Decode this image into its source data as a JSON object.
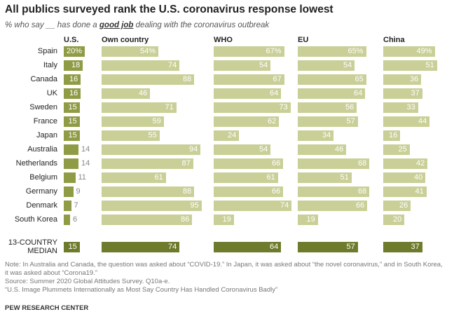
{
  "chart_data": {
    "type": "bar",
    "title": "All publics surveyed rank the U.S. coronavirus response lowest",
    "subtitle": [
      "% who say __ has done a ",
      "good job",
      " dealing with the coronavirus outbreak"
    ],
    "categories": [
      "Spain",
      "Italy",
      "Canada",
      "UK",
      "Sweden",
      "France",
      "Japan",
      "Australia",
      "Netherlands",
      "Belgium",
      "Germany",
      "Denmark",
      "South Korea",
      "13-COUNTRY MEDIAN"
    ],
    "series": [
      {
        "name": "U.S.",
        "color": "#8f9c45",
        "values": [
          20,
          18,
          16,
          16,
          15,
          15,
          15,
          14,
          14,
          11,
          9,
          7,
          6,
          15
        ],
        "value_labels": [
          "20%",
          "18",
          "16",
          "16",
          "15",
          "15",
          "15",
          "14",
          "14",
          "11",
          "9",
          "7",
          "6",
          "15"
        ]
      },
      {
        "name": "Own country",
        "color": "#c9cf96",
        "values": [
          54,
          74,
          88,
          46,
          71,
          59,
          55,
          94,
          87,
          61,
          88,
          95,
          86,
          74
        ],
        "value_labels": [
          "54%",
          "74",
          "88",
          "46",
          "71",
          "59",
          "55",
          "94",
          "87",
          "61",
          "88",
          "95",
          "86",
          "74"
        ]
      },
      {
        "name": "WHO",
        "color": "#c9cf96",
        "values": [
          67,
          54,
          67,
          64,
          73,
          62,
          24,
          54,
          66,
          61,
          66,
          74,
          19,
          64
        ],
        "value_labels": [
          "67%",
          "54",
          "67",
          "64",
          "73",
          "62",
          "24",
          "54",
          "66",
          "61",
          "66",
          "74",
          "19",
          "64"
        ]
      },
      {
        "name": "EU",
        "color": "#c9cf96",
        "values": [
          65,
          54,
          65,
          64,
          56,
          57,
          34,
          46,
          68,
          51,
          68,
          66,
          19,
          57
        ],
        "value_labels": [
          "65%",
          "54",
          "65",
          "64",
          "56",
          "57",
          "34",
          "46",
          "68",
          "51",
          "68",
          "66",
          "19",
          "57"
        ]
      },
      {
        "name": "China",
        "color": "#c9cf96",
        "values": [
          49,
          51,
          36,
          37,
          33,
          44,
          16,
          25,
          42,
          40,
          41,
          26,
          20,
          37
        ],
        "value_labels": [
          "49%",
          "51",
          "36",
          "37",
          "33",
          "44",
          "16",
          "25",
          "42",
          "40",
          "41",
          "26",
          "20",
          "37"
        ]
      }
    ],
    "median_color": "#6e7b2c",
    "notes": [
      "Note: In Australia and Canada, the question was asked about “COVID-19.” In Japan, it was asked about “the novel coronavirus,” and in South Korea, it was asked about “Corona19.”",
      "Source: Summer 2020 Global Attitudes Survey. Q10a-e.",
      "“U.S. Image Plummets Internationally as Most Say Country Has Handled Coronavirus Badly”"
    ],
    "source": "PEW RESEARCH CENTER"
  }
}
